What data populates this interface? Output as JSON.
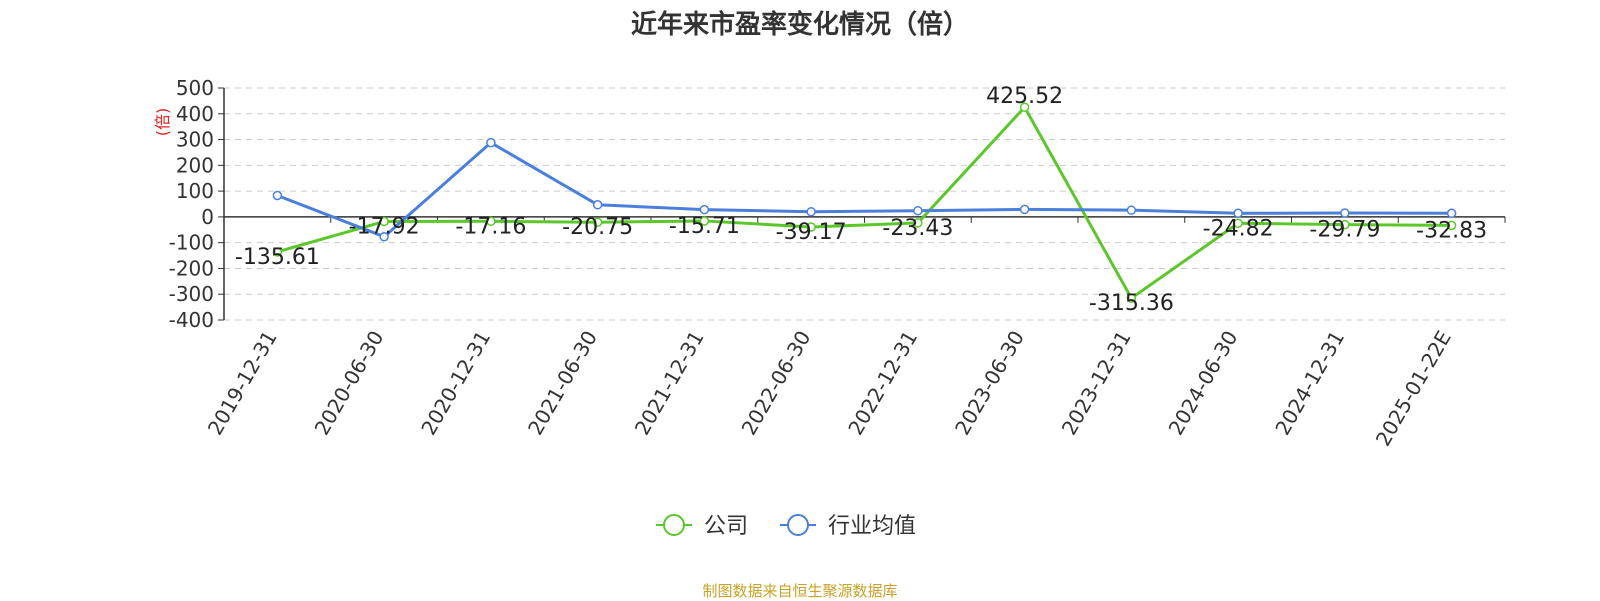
{
  "title": "近年来市盈率变化情况（倍）",
  "source": "制图数据来自恒生聚源数据库",
  "chart_data": {
    "type": "line",
    "title": "近年来市盈率变化情况（倍）",
    "ylabel": "(倍)",
    "xlabel": "",
    "ylim": [
      -400,
      500
    ],
    "yticks": [
      500,
      400,
      300,
      200,
      100,
      0,
      -100,
      -200,
      -300,
      -400
    ],
    "grid": true,
    "legend_position": "bottom",
    "categories": [
      "2019-12-31",
      "2020-06-30",
      "2020-12-31",
      "2021-06-30",
      "2021-12-31",
      "2022-06-30",
      "2022-12-31",
      "2023-06-30",
      "2023-12-31",
      "2024-06-30",
      "2024-12-31",
      "2025-01-22E"
    ],
    "series": [
      {
        "name": "公司",
        "color": "#5cc72a",
        "values": [
          -135.61,
          -17.92,
          -17.16,
          -20.75,
          -15.71,
          -39.17,
          -23.43,
          425.52,
          -315.36,
          -24.82,
          -29.79,
          -32.83
        ],
        "labels": [
          "-135.61",
          "-17.92",
          "-17.16",
          "-20.75",
          "-15.71",
          "-39.17",
          "-23.43",
          "425.52",
          "-315.36",
          "-24.82",
          "-29.79",
          "-32.83"
        ]
      },
      {
        "name": "行业均值",
        "color": "#4a7fdc",
        "values": [
          83,
          -77,
          288,
          47,
          28,
          20,
          24,
          29,
          26,
          14,
          15,
          14
        ]
      }
    ]
  }
}
